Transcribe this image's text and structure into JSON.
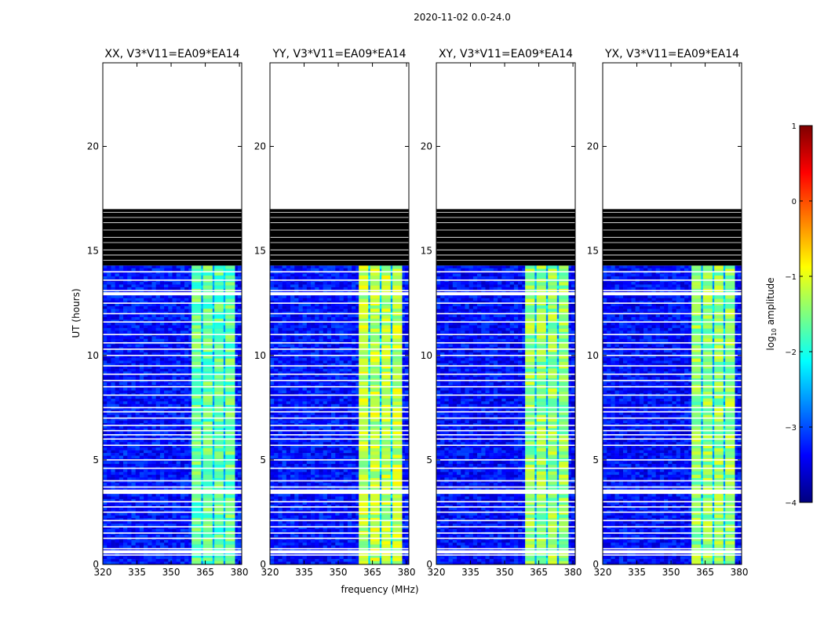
{
  "suptitle": "2020-11-02 0.0-24.0",
  "colorbar": {
    "label": "log10 amplitude",
    "label_main": "log",
    "label_sub": "10",
    "label_tail": " amplitude",
    "min": -4,
    "max": 1,
    "ticks": [
      1,
      0,
      -1,
      -2,
      -3,
      -4
    ],
    "tick_labels": [
      "1",
      "0",
      "−1",
      "−2",
      "−3",
      "−4"
    ],
    "colormap": "jet",
    "colors": [
      "#00007f",
      "#0000ff",
      "#007fff",
      "#00ffff",
      "#7fff7f",
      "#ffff00",
      "#ff7f00",
      "#ff0000",
      "#7f0000"
    ]
  },
  "chart_data": {
    "type": "heatmap",
    "xlabel": "frequency (MHz)",
    "ylabel": "UT (hours)",
    "xlim": [
      320,
      381
    ],
    "ylim": [
      0,
      24
    ],
    "xticks": [
      320,
      335,
      350,
      365,
      380
    ],
    "yticks": [
      0,
      5,
      10,
      15,
      20
    ],
    "data_start_hour": 0.0,
    "data_end_hour": 17.0,
    "blank_top_hours": [
      17.0,
      24.0
    ],
    "black_flagged_hours": [
      14.3,
      17.0
    ],
    "flag_gaps_hours": [
      0.45,
      0.6,
      0.75,
      1.25,
      1.5,
      1.8,
      2.1,
      2.5,
      2.75,
      3.0,
      3.45,
      3.55,
      3.7,
      4.0,
      4.6,
      5.0,
      5.7,
      6.0,
      6.2,
      6.4,
      6.65,
      7.0,
      7.3,
      7.5,
      8.1,
      8.5,
      8.8,
      9.1,
      9.5,
      10.0,
      10.3,
      10.6,
      11.0,
      11.6,
      12.0,
      12.5,
      12.95,
      13.1,
      13.6,
      14.0
    ],
    "band_start_mhz": 359,
    "band_end_mhz": 378,
    "band_channel_edges_mhz": [
      359,
      363.2,
      364.0,
      368.2,
      369.0,
      373.0,
      373.8,
      378
    ],
    "panels": [
      {
        "title": "XX, V3*V11=EA09*EA14",
        "band_level": -1.65,
        "background_level": -3.3
      },
      {
        "title": "YY, V3*V11=EA09*EA14",
        "band_level": -1.2,
        "background_level": -3.3
      },
      {
        "title": "XY, V3*V11=EA09*EA14",
        "band_level": -1.4,
        "background_level": -3.35
      },
      {
        "title": "YX, V3*V11=EA09*EA14",
        "band_level": -1.4,
        "background_level": -3.35
      }
    ]
  }
}
